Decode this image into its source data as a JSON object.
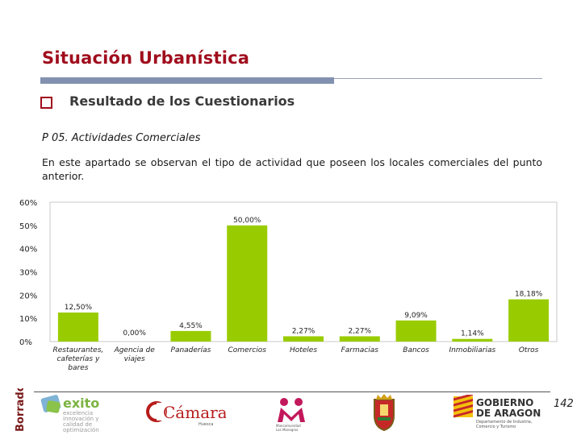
{
  "header": {
    "title": "Situación Urbanística",
    "subtitle": "Resultado de los Cuestionarios"
  },
  "question": "P 05. Actividades Comerciales",
  "paragraph": "En este apartado se observan el tipo de actividad que poseen los locales comerciales del punto anterior.",
  "chart_data": {
    "type": "bar",
    "categories": [
      [
        "Restaurantes,",
        "cafeterías y",
        "bares"
      ],
      [
        "Agencia de",
        "viajes"
      ],
      [
        "Panaderías"
      ],
      [
        "Comercios"
      ],
      [
        "Hoteles"
      ],
      [
        "Farmacias"
      ],
      [
        "Bancos"
      ],
      [
        "Inmobiliarias"
      ],
      [
        "Otros"
      ]
    ],
    "values": [
      12.5,
      0.0,
      4.55,
      50.0,
      2.27,
      2.27,
      9.09,
      1.14,
      18.18
    ],
    "data_labels": [
      "12,50%",
      "0,00%",
      "4,55%",
      "50,00%",
      "2,27%",
      "2,27%",
      "9,09%",
      "1,14%",
      "18,18%"
    ],
    "y_ticks": [
      "0%",
      "10%",
      "20%",
      "30%",
      "40%",
      "50%",
      "60%"
    ],
    "ylim": [
      0,
      60
    ],
    "bar_color": "#99cc00",
    "grid": false
  },
  "footer": {
    "page_number": "142",
    "watermark": "Borrador",
    "logos": [
      {
        "name": "exito",
        "text": "exito",
        "tagline": [
          "excelencia",
          "innovación y",
          "calidad de",
          "optimización"
        ]
      },
      {
        "name": "camara",
        "text": "Cámara",
        "tagline": "Huesca"
      },
      {
        "name": "mancomunidad",
        "tagline": [
          "Mancomunidad",
          "Los Monegros"
        ]
      },
      {
        "name": "escudo"
      },
      {
        "name": "gobierno-aragon",
        "text": [
          "GOBIERNO",
          "DE ARAGON"
        ],
        "tagline": [
          "Departamento de Industria,",
          "Comercio y Turismo"
        ]
      }
    ]
  },
  "colors": {
    "title": "#a00d1d",
    "rule": "#8391b0",
    "bar": "#99cc00"
  }
}
